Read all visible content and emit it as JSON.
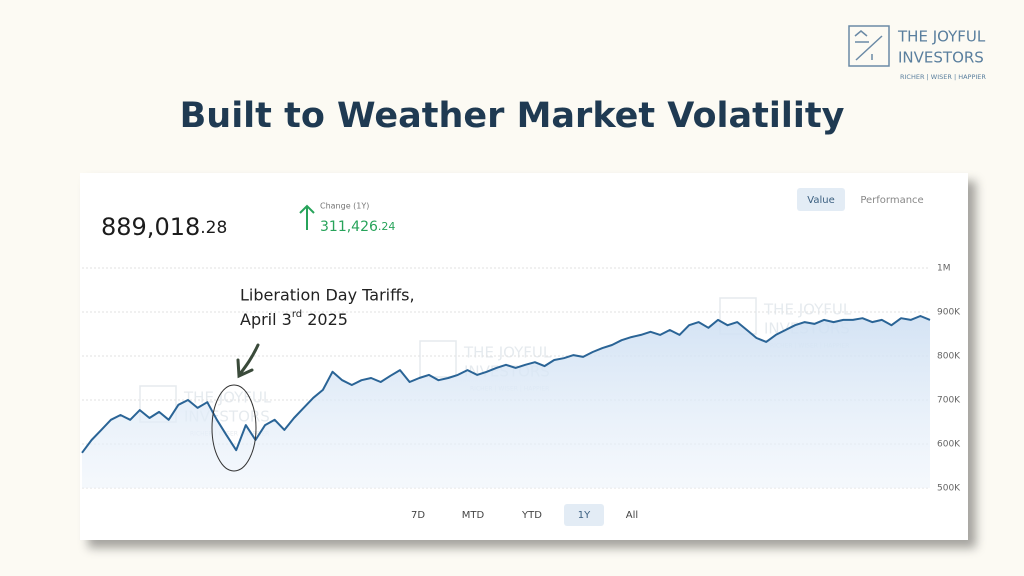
{
  "brand": {
    "line1": "THE JOYFUL",
    "line2": "INVESTORS",
    "tagline": "RICHER | WISER | HAPPIER"
  },
  "slide_title": "Built to Weather Market Volatility",
  "portfolio": {
    "value_main": "889,018",
    "value_cents": ".28",
    "change_label": "Change (1Y)",
    "change_main": "311,426",
    "change_cents": ".24"
  },
  "view_toggle": [
    "Value",
    "Performance"
  ],
  "ranges": [
    "7D",
    "MTD",
    "YTD",
    "1Y",
    "All"
  ],
  "annotation": {
    "line1": "Liberation Day Tariffs,",
    "line2_start": "April 3",
    "line2_sup": "rd",
    "line2_end": " 2025"
  },
  "chart_data": {
    "type": "line",
    "series": [
      {
        "name": "Value",
        "color": "#2a6496",
        "values": [
          580000,
          609000,
          632000,
          655000,
          666000,
          655000,
          677000,
          659000,
          673000,
          655000,
          689000,
          700000,
          682000,
          695000,
          655000,
          620000,
          586000,
          643000,
          609000,
          643000,
          655000,
          632000,
          659000,
          682000,
          705000,
          723000,
          764000,
          745000,
          734000,
          745000,
          750000,
          741000,
          755000,
          768000,
          741000,
          750000,
          757000,
          745000,
          750000,
          757000,
          768000,
          757000,
          764000,
          773000,
          780000,
          773000,
          780000,
          786000,
          777000,
          791000,
          795000,
          802000,
          798000,
          809000,
          818000,
          825000,
          836000,
          843000,
          848000,
          855000,
          848000,
          859000,
          848000,
          870000,
          877000,
          864000,
          882000,
          870000,
          877000,
          859000,
          841000,
          832000,
          848000,
          859000,
          870000,
          877000,
          873000,
          882000,
          877000,
          882000,
          882000,
          886000,
          877000,
          882000,
          870000,
          886000,
          882000,
          891000,
          882000
        ]
      }
    ],
    "ylim": [
      500000,
      1000000
    ],
    "yticks": [
      {
        "value": 500000,
        "label": "500K"
      },
      {
        "value": 600000,
        "label": "600K"
      },
      {
        "value": 700000,
        "label": "700K"
      },
      {
        "value": 800000,
        "label": "800K"
      },
      {
        "value": 900000,
        "label": "900K"
      },
      {
        "value": 1000000,
        "label": "1M"
      }
    ],
    "grid": true
  }
}
